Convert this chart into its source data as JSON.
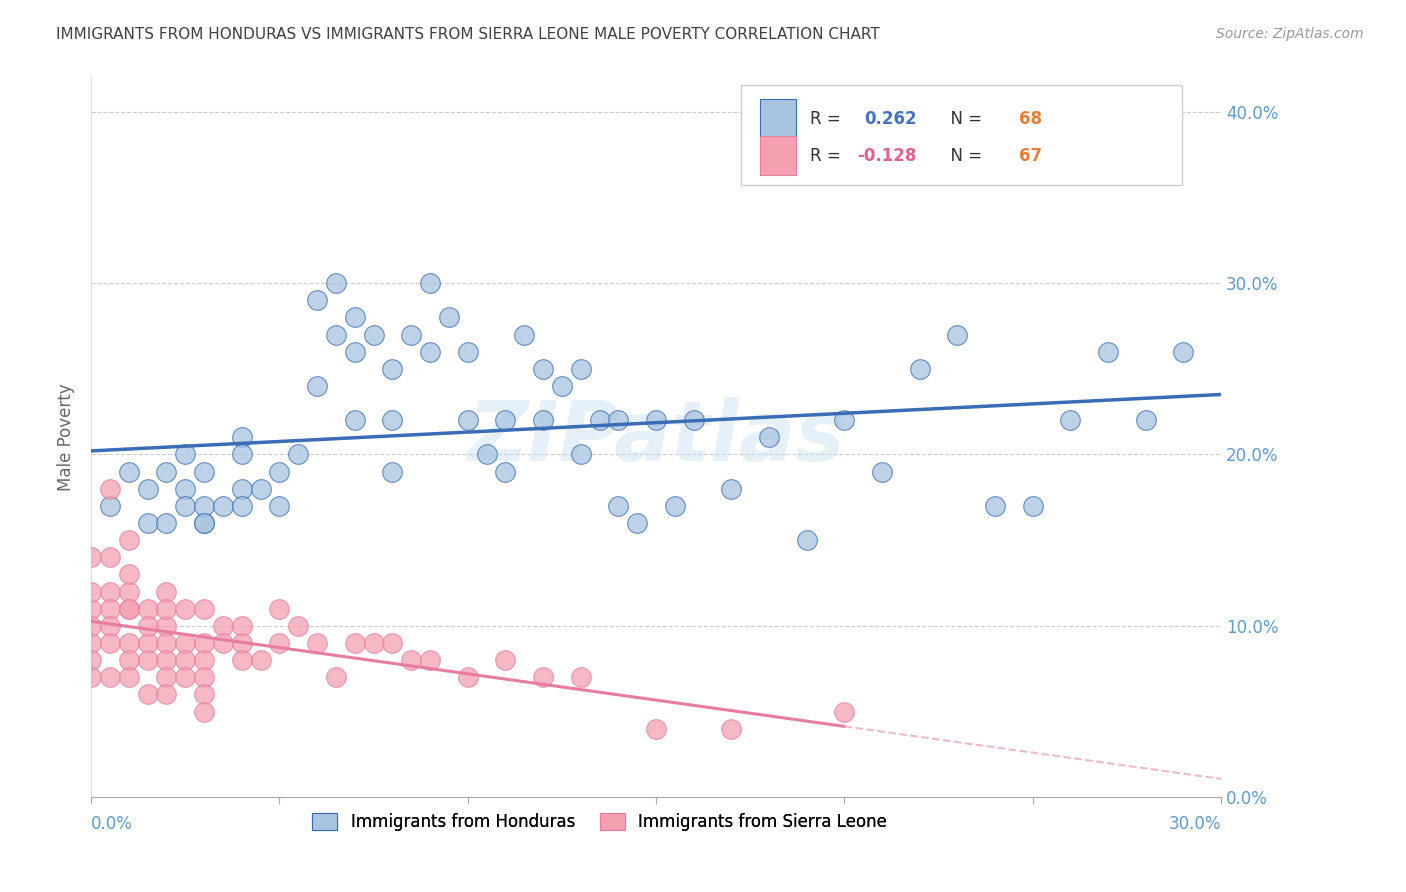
{
  "title": "IMMIGRANTS FROM HONDURAS VS IMMIGRANTS FROM SIERRA LEONE MALE POVERTY CORRELATION CHART",
  "source": "Source: ZipAtlas.com",
  "ylabel": "Male Poverty",
  "xlim": [
    0.0,
    0.3
  ],
  "ylim": [
    0.0,
    0.42
  ],
  "yticks": [
    0.0,
    0.1,
    0.2,
    0.3,
    0.4
  ],
  "xticks": [
    0.0,
    0.05,
    0.1,
    0.15,
    0.2,
    0.25,
    0.3
  ],
  "ytick_labels": [
    "0.0%",
    "10.0%",
    "20.0%",
    "30.0%",
    "40.0%"
  ],
  "color_honduras": "#a8c4e0",
  "color_sierra": "#f4a0b0",
  "color_line_honduras": "#3a6db5",
  "color_line_sierra": "#e87ca0",
  "color_line_sierra_dashed": "#f0b8cc",
  "color_ticks": "#5b9bd5",
  "color_r_value": "#4472c4",
  "color_n_value": "#ed7d31",
  "color_r_neg": "#e06090",
  "watermark": "ZIPatlas",
  "honduras_x": [
    0.005,
    0.01,
    0.015,
    0.015,
    0.02,
    0.02,
    0.025,
    0.025,
    0.025,
    0.03,
    0.03,
    0.03,
    0.03,
    0.035,
    0.04,
    0.04,
    0.04,
    0.04,
    0.045,
    0.05,
    0.05,
    0.055,
    0.06,
    0.06,
    0.065,
    0.065,
    0.07,
    0.07,
    0.07,
    0.075,
    0.08,
    0.08,
    0.08,
    0.085,
    0.09,
    0.09,
    0.095,
    0.1,
    0.1,
    0.105,
    0.11,
    0.11,
    0.115,
    0.12,
    0.12,
    0.125,
    0.13,
    0.13,
    0.135,
    0.14,
    0.14,
    0.145,
    0.15,
    0.155,
    0.16,
    0.17,
    0.18,
    0.19,
    0.2,
    0.21,
    0.22,
    0.23,
    0.24,
    0.25,
    0.26,
    0.27,
    0.28,
    0.29
  ],
  "honduras_y": [
    0.17,
    0.19,
    0.16,
    0.18,
    0.16,
    0.19,
    0.18,
    0.2,
    0.17,
    0.16,
    0.19,
    0.17,
    0.16,
    0.17,
    0.21,
    0.18,
    0.17,
    0.2,
    0.18,
    0.19,
    0.17,
    0.2,
    0.24,
    0.29,
    0.27,
    0.3,
    0.28,
    0.26,
    0.22,
    0.27,
    0.19,
    0.22,
    0.25,
    0.27,
    0.3,
    0.26,
    0.28,
    0.22,
    0.26,
    0.2,
    0.19,
    0.22,
    0.27,
    0.25,
    0.22,
    0.24,
    0.25,
    0.2,
    0.22,
    0.22,
    0.17,
    0.16,
    0.22,
    0.17,
    0.22,
    0.18,
    0.21,
    0.15,
    0.22,
    0.19,
    0.25,
    0.27,
    0.17,
    0.17,
    0.22,
    0.26,
    0.22,
    0.26
  ],
  "sierra_x": [
    0.0,
    0.0,
    0.0,
    0.0,
    0.0,
    0.0,
    0.0,
    0.005,
    0.005,
    0.005,
    0.005,
    0.005,
    0.005,
    0.005,
    0.01,
    0.01,
    0.01,
    0.01,
    0.01,
    0.01,
    0.01,
    0.01,
    0.015,
    0.015,
    0.015,
    0.015,
    0.015,
    0.02,
    0.02,
    0.02,
    0.02,
    0.02,
    0.02,
    0.02,
    0.025,
    0.025,
    0.025,
    0.025,
    0.03,
    0.03,
    0.03,
    0.03,
    0.03,
    0.03,
    0.035,
    0.035,
    0.04,
    0.04,
    0.04,
    0.045,
    0.05,
    0.05,
    0.055,
    0.06,
    0.065,
    0.07,
    0.075,
    0.08,
    0.085,
    0.09,
    0.1,
    0.11,
    0.12,
    0.13,
    0.15,
    0.17,
    0.2
  ],
  "sierra_y": [
    0.11,
    0.09,
    0.12,
    0.1,
    0.08,
    0.14,
    0.07,
    0.14,
    0.12,
    0.11,
    0.18,
    0.1,
    0.09,
    0.07,
    0.15,
    0.12,
    0.11,
    0.09,
    0.08,
    0.13,
    0.11,
    0.07,
    0.11,
    0.09,
    0.1,
    0.08,
    0.06,
    0.12,
    0.1,
    0.09,
    0.11,
    0.08,
    0.07,
    0.06,
    0.11,
    0.09,
    0.08,
    0.07,
    0.11,
    0.09,
    0.08,
    0.07,
    0.06,
    0.05,
    0.1,
    0.09,
    0.1,
    0.09,
    0.08,
    0.08,
    0.11,
    0.09,
    0.1,
    0.09,
    0.07,
    0.09,
    0.09,
    0.09,
    0.08,
    0.08,
    0.07,
    0.08,
    0.07,
    0.07,
    0.04,
    0.04,
    0.05
  ]
}
